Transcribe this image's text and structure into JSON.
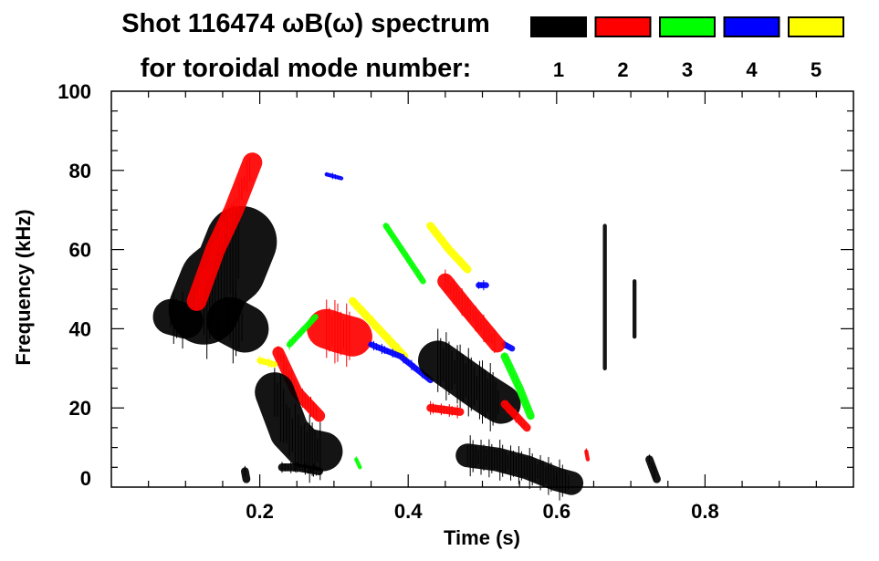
{
  "chart_data": {
    "type": "heatmap",
    "title": "Shot 116474 ωB(ω) spectrum",
    "subtitle": "for toroidal mode number:",
    "xlabel": "Time (s)",
    "ylabel": "Frequency (kHz)",
    "xlim": [
      0,
      1.0
    ],
    "ylim": [
      0,
      100
    ],
    "xticks": [
      0.2,
      0.4,
      0.6,
      0.8
    ],
    "xtick_labels": [
      "0.2",
      "0.4",
      "0.6",
      "0.8"
    ],
    "yticks": [
      0,
      20,
      40,
      60,
      80,
      100
    ],
    "ytick_labels": [
      "0",
      "20",
      "40",
      "60",
      "80",
      "100"
    ],
    "grid": false,
    "legend": {
      "placement": "top-right",
      "entries": [
        {
          "label": "1",
          "color": "#000000"
        },
        {
          "label": "2",
          "color": "#ff0000"
        },
        {
          "label": "3",
          "color": "#00ff00"
        },
        {
          "label": "4",
          "color": "#0000ff"
        },
        {
          "label": "5",
          "color": "#ffff00"
        }
      ]
    },
    "features": [
      {
        "mode": 1,
        "t": [
          0.08,
          0.1
        ],
        "f": [
          43,
          42
        ],
        "spread_khz": 9
      },
      {
        "mode": 1,
        "t": [
          0.125,
          0.14,
          0.16,
          0.175
        ],
        "f": [
          45,
          52,
          55,
          62
        ],
        "spread_khz": 18
      },
      {
        "mode": 1,
        "t": [
          0.16,
          0.18
        ],
        "f": [
          42,
          40
        ],
        "spread_khz": 12
      },
      {
        "mode": 2,
        "t": [
          0.115,
          0.14,
          0.165,
          0.19
        ],
        "f": [
          47,
          60,
          70,
          82
        ],
        "spread_khz": 5
      },
      {
        "mode": 2,
        "t": [
          0.225,
          0.25,
          0.28
        ],
        "f": [
          34,
          24,
          18
        ],
        "spread_khz": 3
      },
      {
        "mode": 1,
        "t": [
          0.22,
          0.24,
          0.26,
          0.285
        ],
        "f": [
          24,
          14,
          10,
          9
        ],
        "spread_khz": 10
      },
      {
        "mode": 1,
        "t": [
          0.23,
          0.25,
          0.28
        ],
        "f": [
          5,
          5,
          4
        ],
        "spread_khz": 2
      },
      {
        "mode": 2,
        "t": [
          0.29,
          0.305,
          0.325
        ],
        "f": [
          40,
          39,
          38
        ],
        "spread_khz": 10
      },
      {
        "mode": 5,
        "t": [
          0.2,
          0.22
        ],
        "f": [
          32,
          31
        ],
        "spread_khz": 1.5
      },
      {
        "mode": 3,
        "t": [
          0.24,
          0.275
        ],
        "f": [
          36,
          43
        ],
        "spread_khz": 1.5
      },
      {
        "mode": 5,
        "t": [
          0.325,
          0.36,
          0.395
        ],
        "f": [
          47,
          40,
          33
        ],
        "spread_khz": 2
      },
      {
        "mode": 4,
        "t": [
          0.35,
          0.39,
          0.43
        ],
        "f": [
          36,
          33,
          27
        ],
        "spread_khz": 1.5
      },
      {
        "mode": 3,
        "t": [
          0.37,
          0.395,
          0.42
        ],
        "f": [
          66,
          59,
          52
        ],
        "spread_khz": 1.5
      },
      {
        "mode": 5,
        "t": [
          0.43,
          0.455,
          0.48
        ],
        "f": [
          66,
          60,
          55
        ],
        "spread_khz": 2
      },
      {
        "mode": 4,
        "t": [
          0.29,
          0.31
        ],
        "f": [
          79,
          78
        ],
        "spread_khz": 1
      },
      {
        "mode": 4,
        "t": [
          0.495,
          0.505
        ],
        "f": [
          51,
          51
        ],
        "spread_khz": 1.5
      },
      {
        "mode": 4,
        "t": [
          0.53,
          0.54
        ],
        "f": [
          36,
          35
        ],
        "spread_khz": 1.5
      },
      {
        "mode": 2,
        "t": [
          0.45,
          0.48,
          0.52
        ],
        "f": [
          52,
          45,
          36
        ],
        "spread_khz": 4
      },
      {
        "mode": 1,
        "t": [
          0.44,
          0.47,
          0.5,
          0.525
        ],
        "f": [
          32,
          28,
          24,
          21
        ],
        "spread_khz": 10
      },
      {
        "mode": 2,
        "t": [
          0.43,
          0.47
        ],
        "f": [
          20,
          19
        ],
        "spread_khz": 2
      },
      {
        "mode": 3,
        "t": [
          0.53,
          0.55,
          0.565
        ],
        "f": [
          33,
          25,
          18
        ],
        "spread_khz": 2
      },
      {
        "mode": 2,
        "t": [
          0.53,
          0.56
        ],
        "f": [
          21,
          15
        ],
        "spread_khz": 2
      },
      {
        "mode": 1,
        "t": [
          0.48,
          0.52,
          0.56,
          0.6,
          0.62
        ],
        "f": [
          8,
          7,
          5,
          2,
          1
        ],
        "spread_khz": 6
      },
      {
        "mode": 1,
        "t": [
          0.665,
          0.665
        ],
        "f": [
          30,
          66
        ],
        "spread_khz": 1
      },
      {
        "mode": 1,
        "t": [
          0.705,
          0.705
        ],
        "f": [
          38,
          52
        ],
        "spread_khz": 1
      },
      {
        "mode": 1,
        "t": [
          0.725,
          0.735
        ],
        "f": [
          7,
          2
        ],
        "spread_khz": 2
      },
      {
        "mode": 1,
        "t": [
          0.18,
          0.182
        ],
        "f": [
          4,
          2
        ],
        "spread_khz": 2
      },
      {
        "mode": 3,
        "t": [
          0.33,
          0.335
        ],
        "f": [
          7,
          5
        ],
        "spread_khz": 1
      },
      {
        "mode": 2,
        "t": [
          0.64,
          0.642
        ],
        "f": [
          9,
          7
        ],
        "spread_khz": 1
      }
    ]
  }
}
